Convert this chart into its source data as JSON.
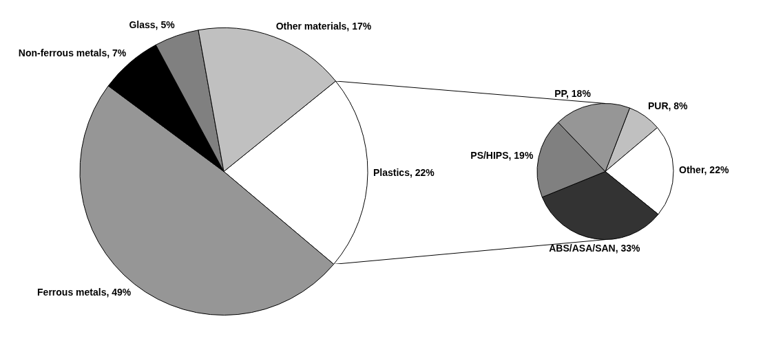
{
  "chart_data": [
    {
      "type": "pie",
      "categories": [
        "Plastics",
        "Ferrous metals",
        "Non-ferrous metals",
        "Glass",
        "Other materials"
      ],
      "values": [
        22,
        49,
        7,
        5,
        17
      ],
      "value_labels": [
        "22%",
        "49%",
        "7%",
        "5%",
        "17%"
      ],
      "colors": [
        "#ffffff",
        "#969696",
        "#000000",
        "#808080",
        "#c0c0c0"
      ],
      "legend": false
    },
    {
      "type": "pie",
      "categories": [
        "PUR",
        "Other",
        "ABS/ASA/SAN",
        "PS/HIPS",
        "PP"
      ],
      "values": [
        8,
        22,
        33,
        19,
        18
      ],
      "value_labels": [
        "8%",
        "22%",
        "33%",
        "19%",
        "18%"
      ],
      "colors": [
        "#c0c0c0",
        "#ffffff",
        "#333333",
        "#808080",
        "#969696"
      ],
      "legend": false
    }
  ]
}
